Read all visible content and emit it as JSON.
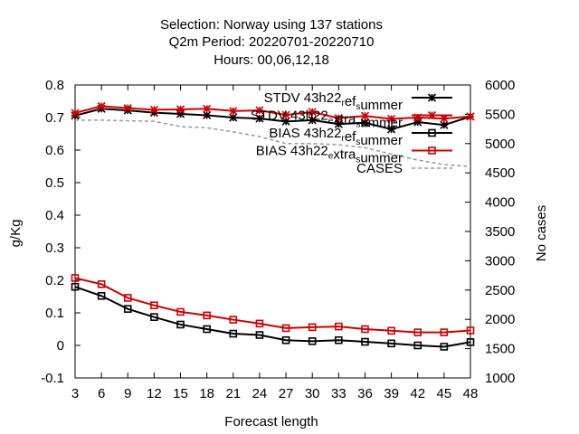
{
  "chart_data": {
    "type": "line",
    "title_lines": [
      "Selection: Norway using   137 stations",
      "Q2m   Period: 20220701-20220710",
      "Hours:  00,06,12,18"
    ],
    "xlabel": "Forecast length",
    "ylabel": "g/Kg",
    "y2label": "No cases",
    "x": [
      3,
      6,
      9,
      12,
      15,
      18,
      21,
      24,
      27,
      30,
      33,
      36,
      39,
      42,
      45,
      48
    ],
    "xlim": [
      3,
      48
    ],
    "ylim": [
      -0.1,
      0.8
    ],
    "y2lim": [
      1000,
      6000
    ],
    "xticks": [
      "3",
      "6",
      "9",
      "12",
      "15",
      "18",
      "21",
      "24",
      "27",
      "30",
      "33",
      "36",
      "39",
      "42",
      "45",
      "48"
    ],
    "yticks": [
      "-0.1",
      "0",
      "0.1",
      "0.2",
      "0.3",
      "0.4",
      "0.5",
      "0.6",
      "0.7",
      "0.8"
    ],
    "y2ticks": [
      "1000",
      "1500",
      "2000",
      "2500",
      "3000",
      "3500",
      "4000",
      "4500",
      "5000",
      "5500",
      "6000"
    ],
    "legend_position": "top-right",
    "grid": false,
    "series": [
      {
        "name": "STDV 43h22_ref_summer",
        "label_main": "STDV 43h22",
        "label_sub": "r",
        "label_rest": "ef",
        "label_sub2": "s",
        "label_end": "ummer",
        "color": "#000000",
        "marker": "star",
        "axis": "y",
        "values": [
          0.706,
          0.727,
          0.722,
          0.715,
          0.711,
          0.707,
          0.7,
          0.697,
          0.688,
          0.692,
          0.68,
          0.684,
          0.664,
          0.686,
          0.677,
          0.703
        ]
      },
      {
        "name": "STDV 43h22_extra_summer",
        "label_main": "STDV 43h22",
        "label_sub": "e",
        "label_rest": "xtra",
        "label_sub2": "s",
        "label_end": "ummer",
        "color": "#cc0000",
        "marker": "star",
        "axis": "y",
        "values": [
          0.714,
          0.735,
          0.729,
          0.724,
          0.725,
          0.727,
          0.72,
          0.722,
          0.708,
          0.717,
          0.698,
          0.705,
          0.696,
          0.7,
          0.697,
          0.703
        ]
      },
      {
        "name": "BIAS 43h22_ref_summer",
        "label_main": "BIAS 43h22",
        "label_sub": "r",
        "label_rest": "ef",
        "label_sub2": "s",
        "label_end": "ummer",
        "color": "#000000",
        "marker": "square",
        "axis": "y",
        "values": [
          0.18,
          0.152,
          0.112,
          0.087,
          0.064,
          0.05,
          0.036,
          0.032,
          0.016,
          0.013,
          0.016,
          0.011,
          0.006,
          0.0,
          -0.004,
          0.01
        ]
      },
      {
        "name": "BIAS 43h22_extra_summer",
        "label_main": "BIAS 43h22",
        "label_sub": "e",
        "label_rest": "xtra",
        "label_sub2": "s",
        "label_end": "ummer",
        "color": "#cc0000",
        "marker": "square",
        "axis": "y",
        "values": [
          0.207,
          0.188,
          0.146,
          0.123,
          0.103,
          0.092,
          0.079,
          0.067,
          0.053,
          0.056,
          0.058,
          0.05,
          0.045,
          0.04,
          0.04,
          0.046
        ]
      },
      {
        "name": "CASES",
        "label_main": "CASES",
        "label_sub": "",
        "label_rest": "",
        "label_sub2": "",
        "label_end": "",
        "color": "#999999",
        "marker": "none",
        "dashed": true,
        "axis": "y2",
        "values": [
          5400,
          5400,
          5390,
          5380,
          5290,
          5270,
          5200,
          5120,
          5000,
          5000,
          4980,
          4930,
          4820,
          4720,
          4640,
          4610
        ]
      }
    ]
  }
}
